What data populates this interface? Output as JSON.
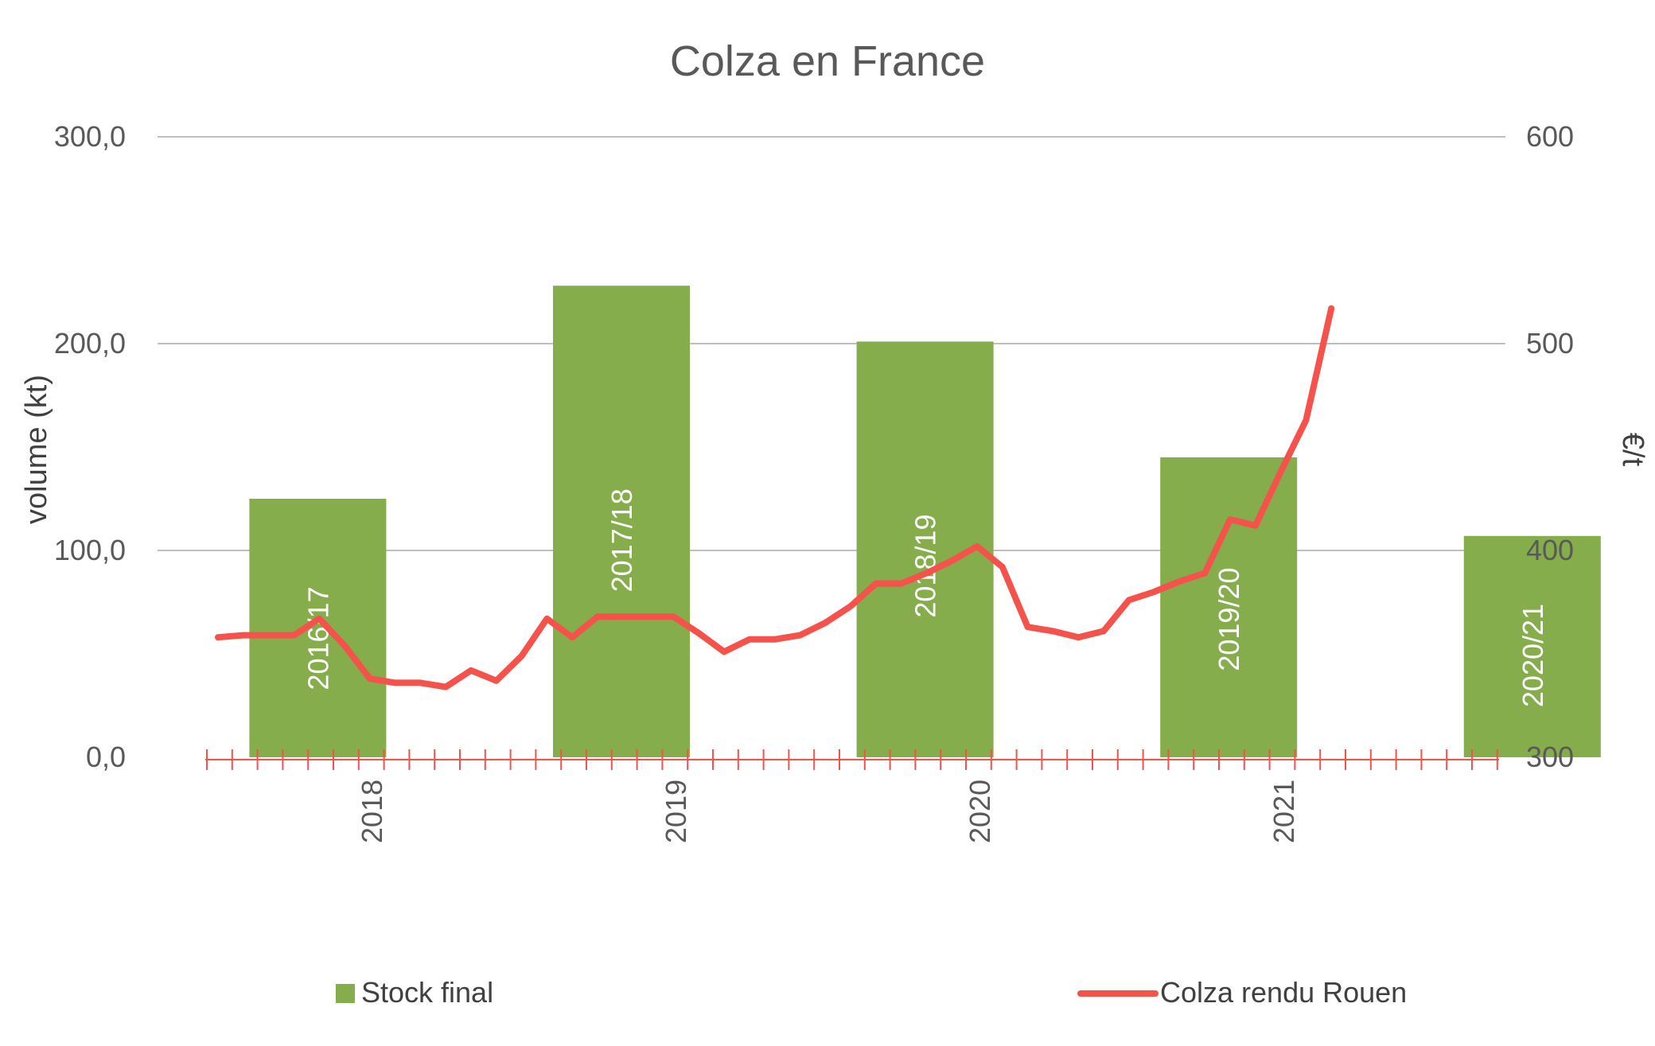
{
  "chart_data": {
    "type": "bar",
    "title": "Colza en France",
    "ylabel": "volume  (kt)",
    "y2label": "€/t",
    "ylim": [
      0,
      300
    ],
    "y2lim": [
      300,
      600
    ],
    "yticks": [
      "0,0",
      "100,0",
      "200,0",
      "300,0"
    ],
    "y2ticks": [
      "300",
      "400",
      "500",
      "600"
    ],
    "xticks": [
      "2018",
      "2019",
      "2020",
      "2021"
    ],
    "grid": true,
    "legend_position": "bottom",
    "colors": {
      "bar": "#86AD4B",
      "line": "#F4524A",
      "grid": "#BFBFBF",
      "text": "#595959"
    },
    "bar_series": {
      "name": "Stock final",
      "categories": [
        "2016/17",
        "2017/18",
        "2018/19",
        "2019/20",
        "2020/21"
      ],
      "values": [
        125,
        228,
        201,
        145,
        107
      ]
    },
    "line_series": {
      "name": "Colza rendu Rouen",
      "x": [
        "2017-07",
        "2017-08",
        "2017-09",
        "2017-10",
        "2017-11",
        "2017-12",
        "2018-01",
        "2018-02",
        "2018-03",
        "2018-04",
        "2018-05",
        "2018-06",
        "2018-07",
        "2018-08",
        "2018-09",
        "2018-10",
        "2018-11",
        "2018-12",
        "2019-01",
        "2019-02",
        "2019-03",
        "2019-04",
        "2019-05",
        "2019-06",
        "2019-07",
        "2019-08",
        "2019-09",
        "2019-10",
        "2019-11",
        "2019-12",
        "2020-01",
        "2020-02",
        "2020-03",
        "2020-04",
        "2020-05",
        "2020-06",
        "2020-07",
        "2020-08",
        "2020-09",
        "2020-10",
        "2020-11",
        "2020-12",
        "2021-01",
        "2021-02",
        "2021-03"
      ],
      "y": [
        358,
        359,
        359,
        359,
        367,
        354,
        338,
        336,
        336,
        334,
        342,
        337,
        349,
        367,
        358,
        368,
        368,
        368,
        368,
        360,
        351,
        357,
        357,
        359,
        365,
        373,
        384,
        384,
        389,
        395,
        402,
        392,
        363,
        361,
        358,
        361,
        376,
        380,
        385,
        389,
        415,
        412,
        438,
        463,
        517
      ]
    }
  }
}
